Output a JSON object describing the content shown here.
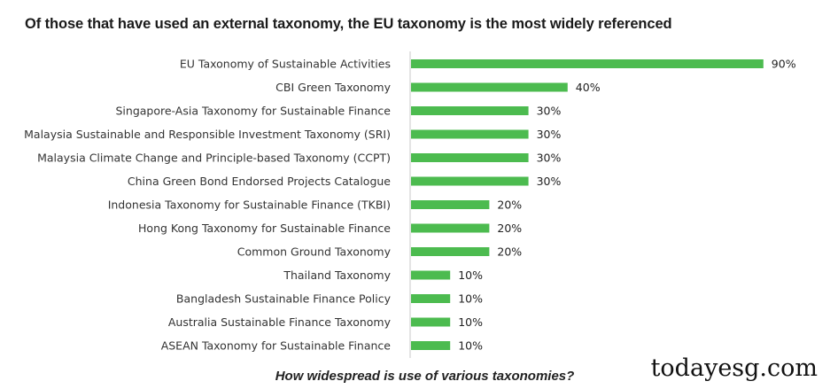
{
  "title": "Of those that have used an external taxonomy, the EU taxonomy is the most widely referenced",
  "subtitle": "How widespread is use of various taxonomies?",
  "watermark": "todayesg.com",
  "colors": {
    "bar": "#4cbb4f",
    "axis": "#c8c8c8",
    "text": "#333333"
  },
  "chart_data": {
    "type": "bar",
    "orientation": "horizontal",
    "categories": [
      "EU Taxonomy of Sustainable Activities",
      "CBI Green Taxonomy",
      "Singapore-Asia Taxonomy for Sustainable Finance",
      "Malaysia Sustainable and Responsible Investment Taxonomy (SRI)",
      "Malaysia Climate Change and Principle-based Taxonomy (CCPT)",
      "China Green Bond Endorsed Projects Catalogue",
      "Indonesia Taxonomy for Sustainable Finance (TKBI)",
      "Hong Kong Taxonomy for Sustainable Finance",
      "Common Ground Taxonomy",
      "Thailand Taxonomy",
      "Bangladesh Sustainable Finance Policy",
      "Australia Sustainable Finance Taxonomy",
      "ASEAN Taxonomy for Sustainable Finance"
    ],
    "values": [
      90,
      40,
      30,
      30,
      30,
      30,
      20,
      20,
      20,
      10,
      10,
      10,
      10
    ],
    "value_labels": [
      "90%",
      "40%",
      "30%",
      "30%",
      "30%",
      "30%",
      "20%",
      "20%",
      "20%",
      "10%",
      "10%",
      "10%",
      "10%"
    ],
    "title": "Of those that have used an external taxonomy, the EU taxonomy is the most widely referenced",
    "xlim": [
      0,
      100
    ],
    "grid": false,
    "legend": "none"
  }
}
